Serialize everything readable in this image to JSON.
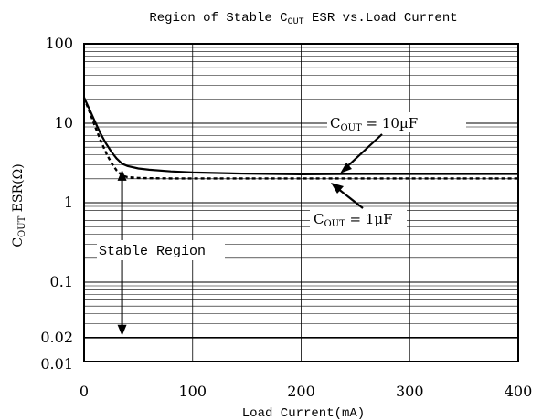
{
  "chart_data": {
    "type": "line",
    "title": {
      "prefix": "Region of Stable C",
      "sub": "OUT",
      "suffix": " ESR vs.Load Current"
    },
    "xlabel": "Load Current(mA)",
    "ylabel": {
      "prefix": "C",
      "sub": "OUT",
      "suffix": " ESR(Ω)"
    },
    "x_scale": "linear",
    "y_scale": "log",
    "xlim": [
      0,
      400
    ],
    "ylim": [
      0.01,
      100
    ],
    "x_ticks": [
      0,
      100,
      200,
      300,
      400
    ],
    "x_tick_labels": [
      "0",
      "100",
      "200",
      "300",
      "400"
    ],
    "y_ticks": [
      0.01,
      0.02,
      0.1,
      1,
      10,
      100
    ],
    "y_tick_labels": [
      "0.01",
      "0.02",
      "0.1",
      "1",
      "10",
      "100"
    ],
    "grid": true,
    "series": [
      {
        "name": "COUT = 10µF",
        "style": "solid",
        "x": [
          0,
          5,
          10,
          15,
          20,
          25,
          30,
          35,
          40,
          50,
          60,
          80,
          100,
          150,
          200,
          250,
          300,
          350,
          400
        ],
        "y": [
          21,
          15,
          10.5,
          7.5,
          5.6,
          4.4,
          3.6,
          3.1,
          2.9,
          2.7,
          2.6,
          2.48,
          2.4,
          2.32,
          2.28,
          2.3,
          2.3,
          2.3,
          2.3
        ]
      },
      {
        "name": "COUT = 1µF",
        "style": "dashed",
        "x": [
          0,
          5,
          10,
          15,
          20,
          25,
          30,
          35,
          40,
          50,
          60,
          80,
          100,
          150,
          200,
          250,
          300,
          350,
          400
        ],
        "y": [
          21,
          14,
          9.2,
          6.2,
          4.3,
          3.2,
          2.55,
          2.2,
          2.1,
          2.05,
          2.03,
          2.02,
          2.02,
          2.02,
          2.02,
          2.02,
          2.02,
          2.02,
          2.02
        ]
      }
    ],
    "annotations": {
      "label_10uF": {
        "prefix": "C",
        "sub": "OUT",
        "suffix": " = 10µF"
      },
      "label_1uF": {
        "prefix": "C",
        "sub": "OUT",
        "suffix": " = 1µF"
      },
      "stable_region": "Stable Region",
      "lower_bound_esr": 0.02,
      "stable_arrow_x": 35
    }
  }
}
